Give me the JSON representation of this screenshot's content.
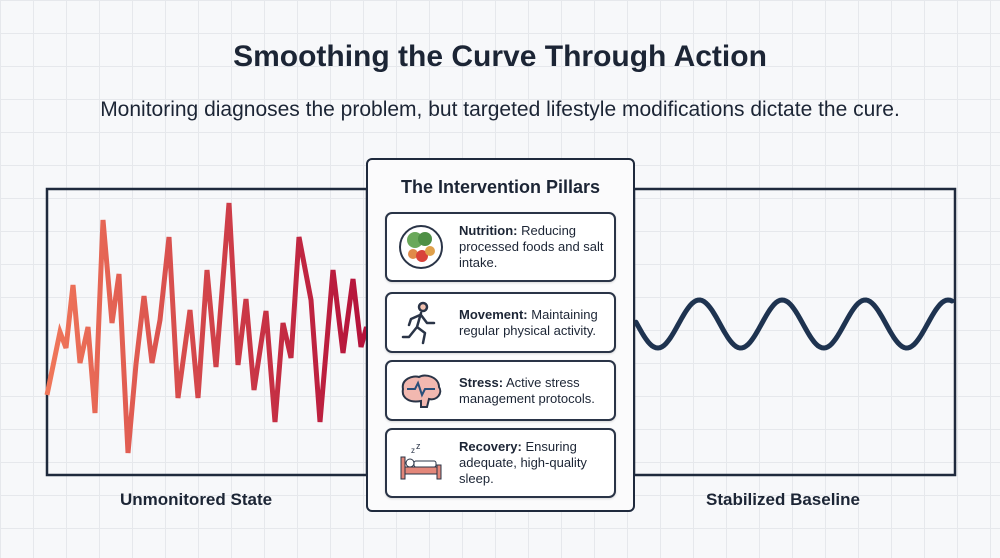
{
  "title": "Smoothing the Curve Through Action",
  "subtitle": "Monitoring diagnoses the problem, but targeted lifestyle modifications dictate the cure.",
  "panel": {
    "heading": "The Intervention Pillars",
    "pillars": [
      {
        "icon": "food-bowl-icon",
        "label": "Nutrition:",
        "text": " Reducing processed foods and salt intake."
      },
      {
        "icon": "running-person-icon",
        "label": "Movement:",
        "text": " Maintaining regular physical activity."
      },
      {
        "icon": "brain-icon",
        "label": "Stress:",
        "text": " Active stress management protocols."
      },
      {
        "icon": "bed-sleep-icon",
        "label": "Recovery:",
        "text": " Ensuring adequate, high-quality sleep."
      }
    ]
  },
  "left_label": "Unmonitored State",
  "right_label": "Stabilized Baseline",
  "colors": {
    "jagged_start": "#f0775a",
    "jagged_end": "#b3103a",
    "smooth": "#1e3350",
    "frame": "#1f2a3d"
  }
}
